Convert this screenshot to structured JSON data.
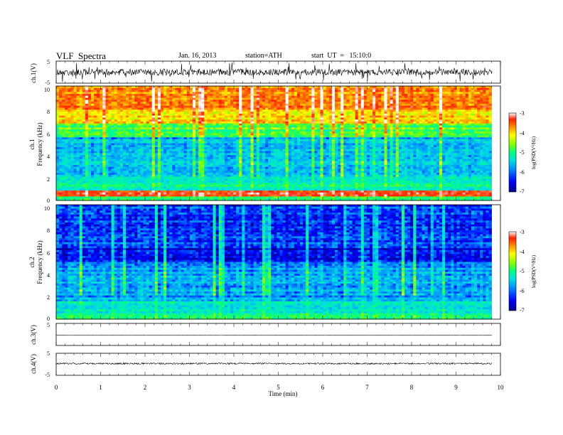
{
  "header": {
    "title": "VLF  Spectra",
    "date": "Jan. 16, 2013",
    "station": "station=ATH",
    "start": "start  UT  =   15:10:0"
  },
  "chart_data": [
    {
      "type": "line",
      "panel": "ch1-waveform",
      "ylabel": "ch.1(V)",
      "yticks": [
        "5",
        "-5"
      ],
      "ylim": [
        -5,
        5
      ],
      "xlim": [
        0,
        10
      ],
      "series": [
        {
          "color": "#000000"
        }
      ]
    },
    {
      "type": "heatmap",
      "panel": "ch1-spectrogram",
      "ylabel": "Frequency (kHz)",
      "ylabel_prefix": "ch.1",
      "yticks": [
        "10",
        "8",
        "6",
        "4",
        "2",
        "0"
      ],
      "ylim": [
        0,
        10
      ],
      "xlim": [
        0,
        9.8
      ],
      "colorbar": {
        "label": "log(PSD(V²/Hz)",
        "ticks": [
          "-3",
          "-4",
          "-5",
          "-6",
          "-7"
        ],
        "range": [
          -7,
          -3
        ],
        "colors": [
          "#00008a",
          "#0000ff",
          "#0096ff",
          "#00e0e0",
          "#00ff80",
          "#80ff00",
          "#ffff00",
          "#ff9000",
          "#ff2000",
          "#ffffff"
        ]
      },
      "band_levels": [
        {
          "f": [
            0,
            0.3
          ],
          "level": -5.3
        },
        {
          "f": [
            0.3,
            0.8
          ],
          "level": -3.6
        },
        {
          "f": [
            0.8,
            2.0
          ],
          "level": -5.4
        },
        {
          "f": [
            2.0,
            5.5
          ],
          "level": -5.9
        },
        {
          "f": [
            5.5,
            6.8
          ],
          "level": -5.0
        },
        {
          "f": [
            6.8,
            8.0
          ],
          "level": -4.2
        },
        {
          "f": [
            8.0,
            10.0
          ],
          "level": -3.8
        }
      ]
    },
    {
      "type": "heatmap",
      "panel": "ch2-spectrogram",
      "ylabel": "Frequency (kHz)",
      "ylabel_prefix": "ch.2",
      "yticks": [
        "10",
        "8",
        "6",
        "4",
        "2",
        "0"
      ],
      "ylim": [
        0,
        10
      ],
      "xlim": [
        0,
        9.8
      ],
      "colorbar": {
        "label": "log(PSD(V²/Hz)",
        "ticks": [
          "-3",
          "-4",
          "-5",
          "-6",
          "-7"
        ],
        "range": [
          -7,
          -3
        ]
      },
      "band_levels": [
        {
          "f": [
            0,
            0.3
          ],
          "level": -5.4
        },
        {
          "f": [
            0.3,
            1.5
          ],
          "level": -5.5
        },
        {
          "f": [
            1.5,
            5.0
          ],
          "level": -6.0
        },
        {
          "f": [
            5.0,
            6.2
          ],
          "level": -6.7
        },
        {
          "f": [
            6.2,
            10.0
          ],
          "level": -6.4
        }
      ]
    },
    {
      "type": "line",
      "panel": "ch3-waveform",
      "ylabel": "ch.3(V)",
      "yticks": [
        "5"
      ],
      "ylim": [
        -5,
        5
      ],
      "xlim": [
        0,
        10
      ],
      "series": [
        {
          "color": "#000000"
        }
      ]
    },
    {
      "type": "line",
      "panel": "ch4-waveform",
      "ylabel": "ch.4(V)",
      "yticks": [
        "5",
        "-5"
      ],
      "ylim": [
        -5,
        5
      ],
      "xlim": [
        0,
        10
      ],
      "series": [
        {
          "color": "#000000"
        }
      ]
    }
  ],
  "xaxis": {
    "label": "Time  (min)",
    "ticks": [
      "0",
      "1",
      "2",
      "3",
      "4",
      "5",
      "6",
      "7",
      "8",
      "9",
      "10"
    ],
    "range": [
      0,
      10
    ]
  }
}
